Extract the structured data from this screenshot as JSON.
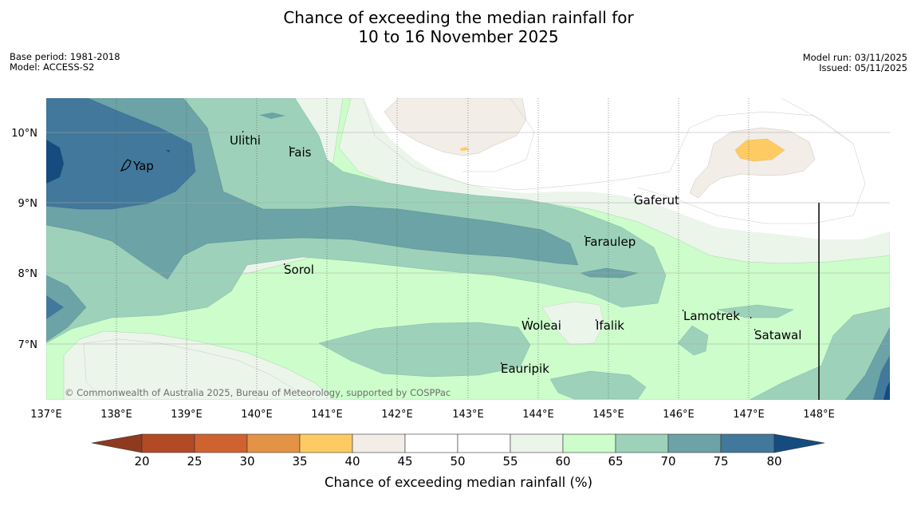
{
  "title_line1": "Chance of exceeding the median rainfall for",
  "title_line2": "10 to 16 November 2025",
  "base_period": "Base period: 1981-2018",
  "model": "Model: ACCESS-S2",
  "model_run": "Model run: 03/11/2025",
  "issued": "Issued: 05/11/2025",
  "copyright": "© Commonwealth of Australia 2025, Bureau of Meteorology, supported by COSPPac",
  "x_ticks": [
    "137°E",
    "138°E",
    "139°E",
    "140°E",
    "141°E",
    "142°E",
    "143°E",
    "144°E",
    "145°E",
    "146°E",
    "147°E",
    "148°E"
  ],
  "y_ticks": [
    "10°N",
    "9°N",
    "8°N",
    "7°N"
  ],
  "places": {
    "yap": "Yap",
    "ulithi": "Ulithi",
    "fais": "Fais",
    "gaferut": "Gaferut",
    "faraulep": "Faraulep",
    "sorol": "Sorol",
    "lamotrek": "Lamotrek",
    "woleai": "Woleai",
    "ifalik": "Ifalik",
    "satawal": "Satawal",
    "eauripik": "Eauripik"
  },
  "colorbar": {
    "label": "Chance of exceeding median rainfall (%)",
    "ticks": [
      "20",
      "25",
      "30",
      "35",
      "40",
      "45",
      "50",
      "55",
      "60",
      "65",
      "70",
      "75",
      "80"
    ],
    "colors": [
      "#8f3a1f",
      "#b34a26",
      "#d0622f",
      "#e39345",
      "#fecb63",
      "#f2ede7",
      "#ffffff",
      "#ffffff",
      "#ebf5ea",
      "#ccfdcb",
      "#9dd1ba",
      "#6ba3a6",
      "#41789b",
      "#144c80"
    ]
  }
}
